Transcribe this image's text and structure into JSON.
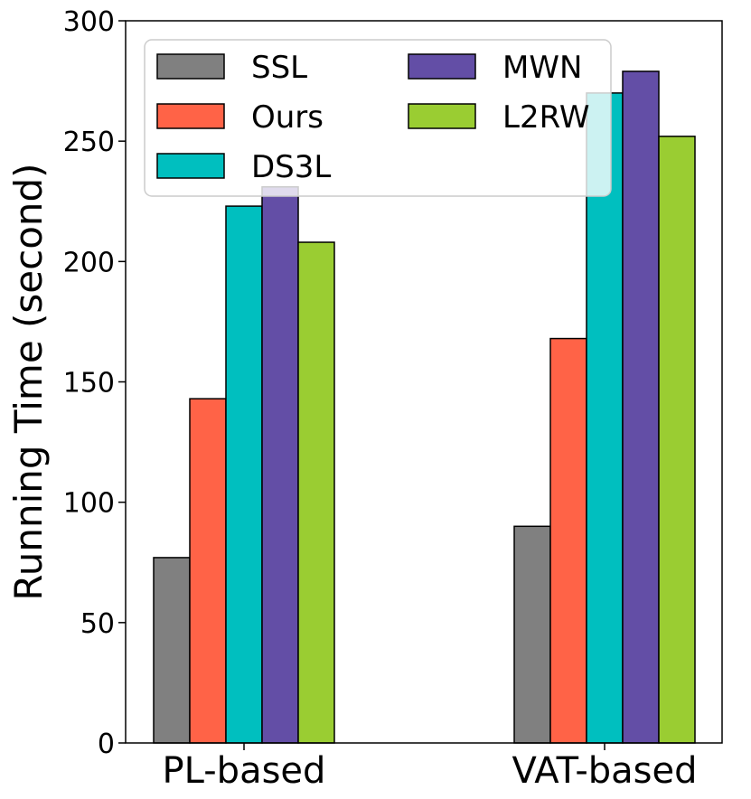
{
  "chart_data": {
    "type": "bar",
    "title": "",
    "xlabel": "",
    "ylabel": "Running Time (second)",
    "categories": [
      "PL-based",
      "VAT-based"
    ],
    "ylim": [
      0,
      300
    ],
    "yticks": [
      0,
      50,
      100,
      150,
      200,
      250,
      300
    ],
    "grid": false,
    "legend_position": "top-left",
    "legend_columns": 2,
    "series": [
      {
        "name": "SSL",
        "color": "#808080",
        "values": [
          77,
          90
        ]
      },
      {
        "name": "Ours",
        "color": "#ff6347",
        "values": [
          143,
          168
        ]
      },
      {
        "name": "DS3L",
        "color": "#00bfbf",
        "values": [
          223,
          270
        ]
      },
      {
        "name": "MWN",
        "color": "#634ea6",
        "values": [
          231,
          279
        ]
      },
      {
        "name": "L2RW",
        "color": "#9acd32",
        "values": [
          208,
          252
        ]
      }
    ]
  }
}
